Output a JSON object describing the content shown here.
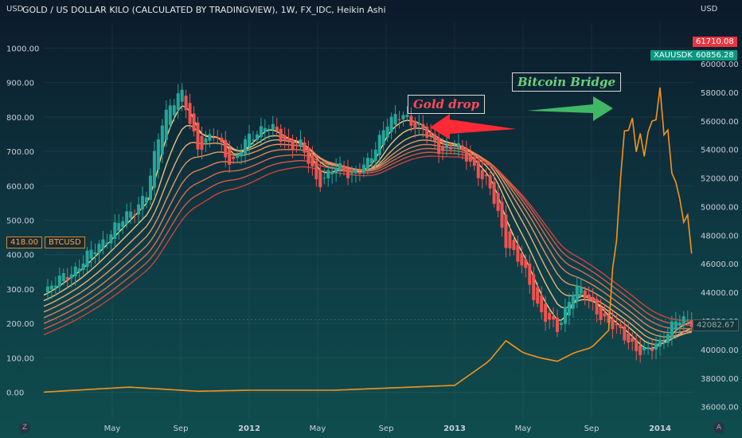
{
  "header": {
    "title": "GOLD / US DOLLAR KILO (CALCULATED BY TRADINGVIEW), 1W, FX_IDC, Heikin Ashi",
    "left_unit": "USD",
    "right_unit": "USD",
    "left_corner": "Z",
    "right_corner": "A"
  },
  "badges": {
    "btc_value": "418.00",
    "btc_label": "BTCUSD",
    "xau_label": "XAUUSDK",
    "xau_value": "60856.28",
    "red_value": "61710.08",
    "ema_value": "42082.67"
  },
  "annotations": {
    "gold_drop": "Gold drop",
    "bitcoin_bridge": "Bitcoin Bridge"
  },
  "colors": {
    "up": "#26a69a",
    "down": "#ef5350",
    "btc_line": "#f7931a",
    "ribbon_light": "#ffe08a",
    "ribbon_dark": "#d8433b"
  },
  "chart_data": {
    "type": "candlestick",
    "title": "GOLD / US DOLLAR KILO (CALCULATED BY TRADINGVIEW), 1W, FX_IDC, Heikin Ashi",
    "left_axis": {
      "label": "USD",
      "range": [
        -75,
        1075
      ],
      "ticks": [
        0,
        100,
        200,
        300,
        400,
        500,
        600,
        700,
        800,
        900,
        1000
      ],
      "tick_labels": [
        "0.00",
        "100.00",
        "200.00",
        "300.00",
        "400.00",
        "500.00",
        "600.00",
        "700.00",
        "800.00",
        "900.00",
        "1000.00"
      ]
    },
    "right_axis": {
      "label": "USD",
      "range": [
        35200,
        62900
      ],
      "ticks": [
        36000,
        38000,
        40000,
        42000,
        44000,
        46000,
        48000,
        50000,
        52000,
        54000,
        56000,
        58000,
        60000
      ],
      "tick_labels": [
        "36000.00",
        "38000.00",
        "40000.00",
        "42000.00",
        "44000.00",
        "46000.00",
        "48000.00",
        "50000.00",
        "52000.00",
        "54000.00",
        "56000.00",
        "58000.00",
        "60000.00"
      ]
    },
    "x_axis": {
      "start": "2011-01",
      "end": "2014-03",
      "tick_labels": [
        "May",
        "Sep",
        "2012",
        "May",
        "Sep",
        "2013",
        "May",
        "Sep",
        "2014"
      ],
      "tick_dates": [
        "2011-05",
        "2011-09",
        "2012-01",
        "2012-05",
        "2012-09",
        "2013-01",
        "2013-05",
        "2013-09",
        "2014-01"
      ]
    },
    "gold_close": [
      [
        "2011-01",
        44000
      ],
      [
        "2011-03",
        45800
      ],
      [
        "2011-05",
        48300
      ],
      [
        "2011-07",
        50800
      ],
      [
        "2011-08",
        56500
      ],
      [
        "2011-09",
        58000
      ],
      [
        "2011-10",
        54200
      ],
      [
        "2011-11",
        55000
      ],
      [
        "2011-12",
        53000
      ],
      [
        "2012-01",
        54800
      ],
      [
        "2012-02",
        55800
      ],
      [
        "2012-03",
        54600
      ],
      [
        "2012-04",
        54300
      ],
      [
        "2012-05",
        51700
      ],
      [
        "2012-06",
        52700
      ],
      [
        "2012-07",
        52300
      ],
      [
        "2012-08",
        53000
      ],
      [
        "2012-09",
        56000
      ],
      [
        "2012-10",
        56300
      ],
      [
        "2012-11",
        55600
      ],
      [
        "2012-12",
        54000
      ],
      [
        "2013-01",
        54300
      ],
      [
        "2013-02",
        53000
      ],
      [
        "2013-03",
        51500
      ],
      [
        "2013-04",
        47600
      ],
      [
        "2013-05",
        45700
      ],
      [
        "2013-06",
        42700
      ],
      [
        "2013-07",
        41300
      ],
      [
        "2013-08",
        44500
      ],
      [
        "2013-09",
        43200
      ],
      [
        "2013-10",
        41800
      ],
      [
        "2013-11",
        40900
      ],
      [
        "2013-12",
        39600
      ],
      [
        "2014-01",
        40600
      ],
      [
        "2014-02",
        42000
      ],
      [
        "2014-03",
        42082
      ]
    ],
    "btc_close": [
      [
        "2011-01",
        0.5
      ],
      [
        "2011-06",
        15
      ],
      [
        "2011-10",
        3
      ],
      [
        "2012-01",
        6
      ],
      [
        "2012-06",
        6
      ],
      [
        "2012-09",
        12
      ],
      [
        "2013-01",
        20
      ],
      [
        "2013-03",
        90
      ],
      [
        "2013-04",
        150
      ],
      [
        "2013-05",
        115
      ],
      [
        "2013-06",
        100
      ],
      [
        "2013-07",
        90
      ],
      [
        "2013-08",
        115
      ],
      [
        "2013-09",
        130
      ],
      [
        "2013-10",
        180
      ],
      [
        "2013-11",
        800
      ],
      [
        "2013-12",
        700
      ],
      [
        "2014-01",
        850
      ],
      [
        "2014-02",
        580
      ],
      [
        "2014-03",
        418
      ]
    ],
    "ribbon": {
      "series_count": 8,
      "start_value": 42500,
      "peak_value": 54200,
      "end_value": 42082.67
    },
    "price_labels": {
      "btc_last": 418.0,
      "xau_last": 60856.28,
      "high_marker": 61710.08,
      "ema_last": 42082.67
    },
    "grid": true
  }
}
